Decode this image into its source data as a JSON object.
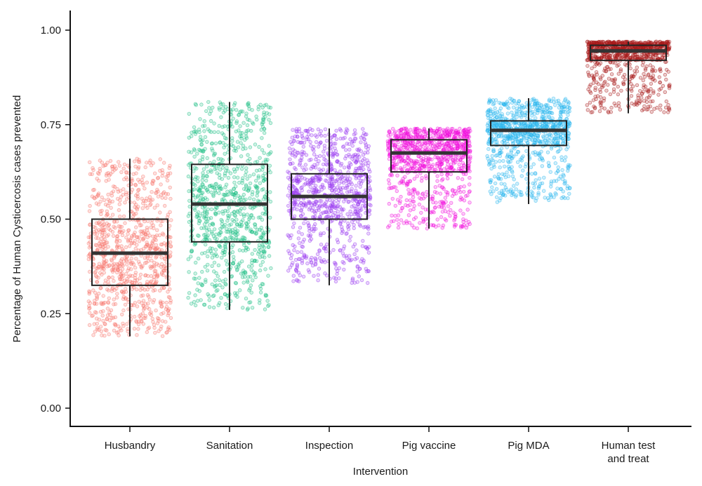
{
  "chart_data": {
    "type": "box",
    "xlabel": "Intervention",
    "ylabel": "Percentage of Human Cysticercosis cases prevented",
    "ylim": [
      -0.05,
      1.05
    ],
    "yticks": [
      {
        "value": 0.0,
        "label": "0.00"
      },
      {
        "value": 0.25,
        "label": "0.25"
      },
      {
        "value": 0.5,
        "label": "0.50"
      },
      {
        "value": 0.75,
        "label": "0.75"
      },
      {
        "value": 1.0,
        "label": "1.00"
      }
    ],
    "grid": false,
    "legend": "none",
    "categories": [
      {
        "label_lines": [
          "Husbandry"
        ],
        "color": "#F8766D",
        "stats": {
          "min": 0.19,
          "q1": 0.325,
          "median": 0.41,
          "q3": 0.5,
          "max": 0.66
        },
        "points_range": [
          0.19,
          0.66
        ]
      },
      {
        "label_lines": [
          "Sanitation"
        ],
        "color": "#1FBF86",
        "stats": {
          "min": 0.26,
          "q1": 0.44,
          "median": 0.54,
          "q3": 0.645,
          "max": 0.81
        },
        "points_range": [
          0.26,
          0.815
        ]
      },
      {
        "label_lines": [
          "Inspection"
        ],
        "color": "#9B3DF0",
        "stats": {
          "min": 0.325,
          "q1": 0.5,
          "median": 0.56,
          "q3": 0.62,
          "max": 0.74
        },
        "points_range": [
          0.33,
          0.74
        ]
      },
      {
        "label_lines": [
          "Pig vaccine"
        ],
        "color": "#F20EDD",
        "stats": {
          "min": 0.475,
          "q1": 0.625,
          "median": 0.675,
          "q3": 0.71,
          "max": 0.74
        },
        "points_range": [
          0.475,
          0.74
        ]
      },
      {
        "label_lines": [
          "Pig MDA"
        ],
        "color": "#29B6EE",
        "stats": {
          "min": 0.54,
          "q1": 0.695,
          "median": 0.735,
          "q3": 0.76,
          "max": 0.82
        },
        "points_range": [
          0.545,
          0.82
        ]
      },
      {
        "label_lines": [
          "Human test",
          "and treat"
        ],
        "color": "#A81A1A",
        "stats": {
          "min": 0.78,
          "q1": 0.92,
          "median": 0.945,
          "q3": 0.96,
          "max": 0.97
        },
        "points_range": [
          0.78,
          0.97
        ]
      }
    ]
  }
}
